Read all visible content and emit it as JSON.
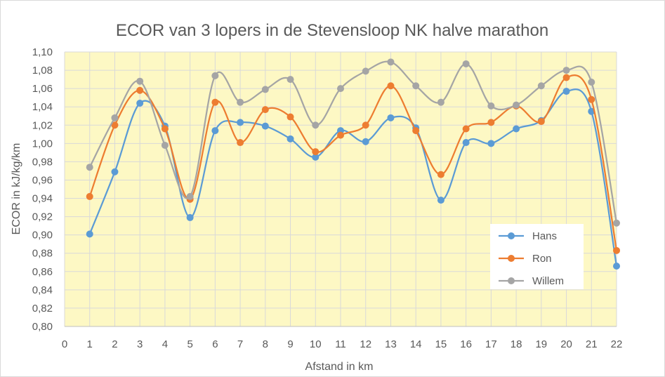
{
  "chart_data": {
    "type": "line",
    "title": "ECOR van 3 lopers in de Stevensloop NK halve marathon",
    "xlabel": "Afstand in km",
    "ylabel": "ECOR in kJ/kg/km",
    "xlim": [
      0,
      22
    ],
    "ylim": [
      0.8,
      1.1
    ],
    "x_ticks": [
      "0",
      "1",
      "2",
      "3",
      "4",
      "5",
      "6",
      "7",
      "8",
      "9",
      "10",
      "11",
      "12",
      "13",
      "14",
      "15",
      "16",
      "17",
      "18",
      "19",
      "20",
      "21",
      "22"
    ],
    "y_ticks": [
      "0,80",
      "0,82",
      "0,84",
      "0,86",
      "0,88",
      "0,90",
      "0,92",
      "0,94",
      "0,96",
      "0,98",
      "1,00",
      "1,02",
      "1,04",
      "1,06",
      "1,08",
      "1,10"
    ],
    "grid": true,
    "smooth": true,
    "legend_position": "bottom-right",
    "plot_background": "#fdf8c4",
    "x": [
      1,
      2,
      3,
      4,
      5,
      6,
      7,
      8,
      9,
      10,
      11,
      12,
      13,
      14,
      15,
      16,
      17,
      18,
      19,
      20,
      21,
      22
    ],
    "series": [
      {
        "name": "Hans",
        "color": "#5b9bd5",
        "values": [
          0.901,
          0.969,
          1.044,
          1.019,
          0.919,
          1.014,
          1.023,
          1.019,
          1.005,
          0.985,
          1.014,
          1.002,
          1.028,
          1.017,
          0.938,
          1.001,
          1.0,
          1.016,
          1.025,
          1.057,
          1.035,
          0.866
        ]
      },
      {
        "name": "Ron",
        "color": "#ed7d31",
        "values": [
          0.942,
          1.02,
          1.058,
          1.016,
          0.939,
          1.045,
          1.001,
          1.037,
          1.029,
          0.991,
          1.009,
          1.02,
          1.063,
          1.014,
          0.966,
          1.016,
          1.023,
          1.041,
          1.024,
          1.072,
          1.048,
          0.883
        ]
      },
      {
        "name": "Willem",
        "color": "#a5a5a5",
        "values": [
          0.974,
          1.028,
          1.068,
          0.998,
          0.942,
          1.074,
          1.045,
          1.059,
          1.07,
          1.02,
          1.06,
          1.079,
          1.089,
          1.063,
          1.045,
          1.087,
          1.041,
          1.042,
          1.063,
          1.08,
          1.067,
          0.913
        ]
      }
    ]
  }
}
